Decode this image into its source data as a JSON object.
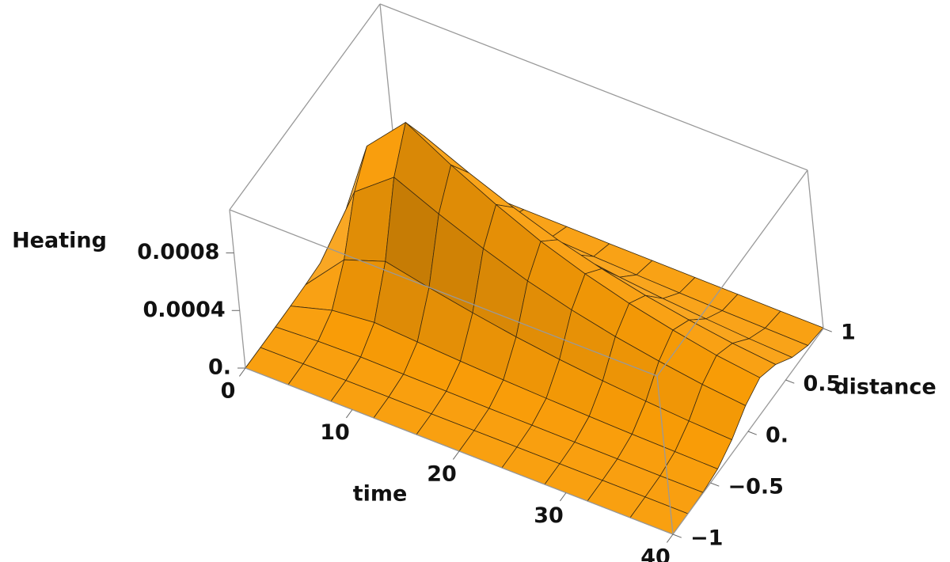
{
  "chart_data": {
    "type": "surface",
    "x_label": "time",
    "y_label": "distance",
    "z_label": "Heating",
    "x": [
      0,
      4,
      8,
      12,
      16,
      20,
      24,
      28,
      32,
      36,
      40
    ],
    "y": [
      -1,
      -0.8,
      -0.6,
      -0.4,
      -0.2,
      0,
      0.2,
      0.4,
      0.6,
      0.8,
      1
    ],
    "z": [
      [
        0,
        0,
        0,
        2e-06,
        7e-06,
        1.6e-05,
        2e-05,
        1.6e-05,
        7e-06,
        2e-06,
        0
      ],
      [
        0,
        2e-06,
        1.6e-05,
        8.8e-05,
        0.000296,
        0.000624,
        0.0008,
        0.000624,
        0.000296,
        8.8e-05,
        1.6e-05
      ],
      [
        0,
        2e-06,
        2.2e-05,
        0.000119,
        0.0004,
        0.000842,
        0.00108,
        0.000842,
        0.0004,
        0.000119,
        2.2e-05
      ],
      [
        0,
        2e-06,
        1.8e-05,
        9.9e-05,
        0.000333,
        0.000702,
        0.0009,
        0.000702,
        0.000333,
        9.9e-05,
        1.8e-05
      ],
      [
        0,
        1e-06,
        1.5e-05,
        8.1e-05,
        0.000274,
        0.000577,
        0.00074,
        0.000577,
        0.000274,
        8.1e-05,
        1.5e-05
      ],
      [
        0,
        1e-06,
        1.2e-05,
        6.6e-05,
        0.000222,
        0.000468,
        0.0006,
        0.000468,
        0.000222,
        6.6e-05,
        1.2e-05
      ],
      [
        0,
        1e-06,
        1e-05,
        5.4e-05,
        0.000181,
        0.000382,
        0.00049,
        0.000382,
        0.000181,
        5.4e-05,
        1e-05
      ],
      [
        0,
        1e-06,
        8e-06,
        4.4e-05,
        0.000148,
        0.000312,
        0.0004,
        0.000312,
        0.000148,
        4.4e-05,
        8e-06
      ],
      [
        0,
        1e-06,
        7e-06,
        3.6e-05,
        0.000122,
        0.000257,
        0.00033,
        0.000257,
        0.000122,
        3.6e-05,
        7e-06
      ],
      [
        0,
        1e-06,
        5e-06,
        3e-05,
        0.0001,
        0.000211,
        0.00027,
        0.000211,
        0.0001,
        3e-05,
        5e-06
      ],
      [
        0,
        0,
        5e-06,
        2.5e-05,
        8.5e-05,
        0.000179,
        0.00023,
        0.000179,
        8.5e-05,
        2.5e-05,
        5e-06
      ]
    ],
    "xlim": [
      0,
      40
    ],
    "ylim": [
      -1,
      1
    ],
    "zlim": [
      0,
      0.0011
    ],
    "xticks": [
      0,
      10,
      20,
      30,
      40
    ],
    "yticks": [
      {
        "value": -1,
        "label": "−1"
      },
      {
        "value": -0.5,
        "label": "−0.5"
      },
      {
        "value": 0,
        "label": "0."
      },
      0.5,
      1
    ],
    "zticks": [
      {
        "value": 0,
        "label": "0."
      },
      0.0004,
      0.0008
    ],
    "color": "#f5a31a"
  }
}
